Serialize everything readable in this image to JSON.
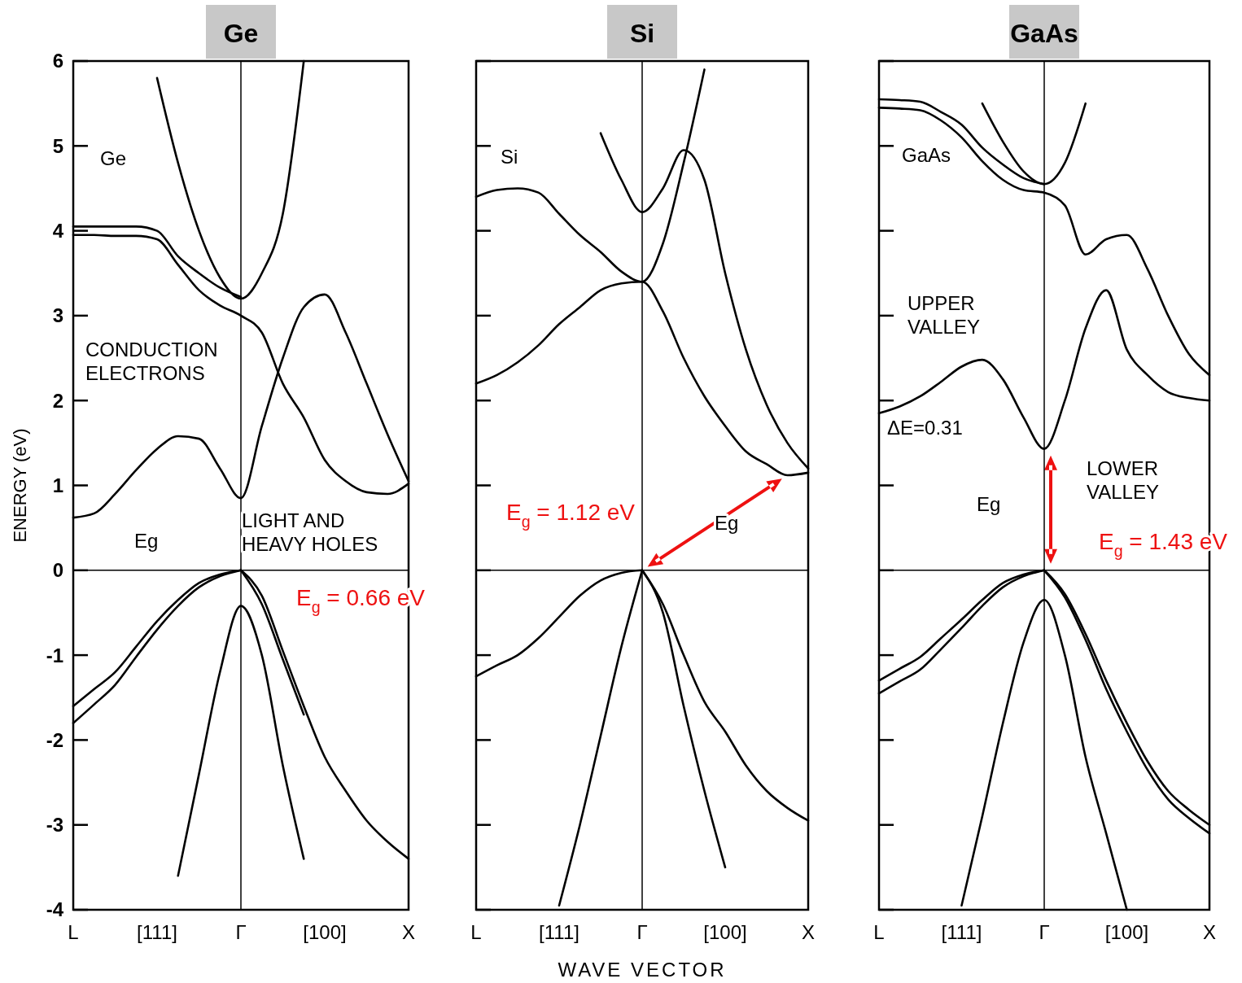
{
  "chart_data": [
    {
      "type": "line",
      "title": "Ge",
      "ylabel": "ENERGY (eV)",
      "categories": [
        "L",
        null,
        null,
        null,
        "[111]",
        null,
        null,
        null,
        "Γ",
        null,
        null,
        null,
        "[100]",
        null,
        null,
        null,
        "X"
      ],
      "ylim": [
        -4,
        6
      ],
      "yticks": [
        -4,
        -3,
        -2,
        -1,
        0,
        1,
        2,
        3,
        4,
        5,
        6
      ],
      "line_style": "solid",
      "ref_lines": [
        {
          "axis": "x",
          "value": "Γ",
          "color": "#000000"
        },
        {
          "axis": "y",
          "value": 0,
          "color": "#000000"
        }
      ],
      "annotations": [
        "Ge",
        "CONDUCTION\nELECTRONS",
        "Eg",
        "LIGHT AND\nHEAVY HOLES",
        "E$_{g}$ = 0.66 eV"
      ],
      "series": [
        {
          "color": "#000000",
          "values": [
            null,
            null,
            null,
            null,
            5.8,
            4.8,
            4.0,
            3.45,
            3.2,
            3.5,
            4.2,
            6,
            null,
            null,
            null,
            null,
            null
          ]
        },
        {
          "color": "#000000",
          "values": [
            4.05,
            4.05,
            4.05,
            4.05,
            4.0,
            3.7,
            3.5,
            3.33,
            3.22,
            null,
            null,
            null,
            null,
            null,
            null,
            null,
            null
          ]
        },
        {
          "color": "#000000",
          "values": [
            3.95,
            3.95,
            3.94,
            3.94,
            3.9,
            3.6,
            3.3,
            3.12,
            3.0,
            2.8,
            2.2,
            1.8,
            1.3,
            1.05,
            0.92,
            0.9,
            1.02
          ]
        },
        {
          "color": "#000000",
          "values": [
            0.62,
            0.67,
            0.9,
            1.18,
            1.43,
            1.58,
            1.55,
            1.2,
            0.85,
            1.7,
            2.5,
            3.1,
            3.25,
            2.8,
            2.2,
            1.6,
            1.05
          ]
        },
        {
          "color": "#000000",
          "values": [
            -1.6,
            -1.4,
            -1.2,
            -0.9,
            -0.6,
            -0.35,
            -0.15,
            -0.05,
            0,
            null,
            null,
            null,
            null,
            null,
            null,
            null,
            null
          ]
        },
        {
          "color": "#000000",
          "values": [
            -1.8,
            -1.58,
            -1.35,
            -1.02,
            -0.7,
            -0.42,
            -0.2,
            -0.07,
            0,
            null,
            null,
            null,
            null,
            null,
            null,
            null,
            null
          ]
        },
        {
          "color": "#000000",
          "values": [
            null,
            null,
            null,
            null,
            null,
            null,
            null,
            null,
            0,
            -0.3,
            -0.95,
            -1.6,
            -2.2,
            -2.6,
            -2.95,
            -3.2,
            -3.4
          ]
        },
        {
          "color": "#000000",
          "values": [
            null,
            null,
            null,
            null,
            null,
            null,
            null,
            null,
            0,
            -0.4,
            -1.05,
            -1.7,
            null,
            null,
            null,
            null,
            null
          ]
        },
        {
          "color": "#000000",
          "values": [
            null,
            null,
            null,
            null,
            null,
            -3.6,
            -2.4,
            -1.2,
            -0.42,
            -1.0,
            -2.3,
            -3.4,
            null,
            null,
            null,
            null,
            null
          ]
        }
      ]
    },
    {
      "type": "line",
      "title": "Si",
      "xlabel": "WAVE VECTOR",
      "categories": [
        "L",
        null,
        null,
        null,
        "[111]",
        null,
        null,
        null,
        "Γ",
        null,
        null,
        null,
        "[100]",
        null,
        null,
        null,
        "X"
      ],
      "ylim": [
        -4,
        6
      ],
      "tick_labels": "x",
      "yticks": [
        -4,
        -3,
        -2,
        -1,
        0,
        1,
        2,
        3,
        4,
        5,
        6
      ],
      "line_style": "solid",
      "ref_lines": [
        {
          "axis": "x",
          "value": "Γ",
          "color": "#000000"
        },
        {
          "axis": "y",
          "value": 0,
          "color": "#000000"
        }
      ],
      "annotations": [
        "Si",
        "Eg",
        "E$_{g}$ = 1.12 eV"
      ],
      "series": [
        {
          "color": "#000000",
          "values": [
            null,
            null,
            null,
            null,
            null,
            null,
            5.15,
            4.6,
            4.22,
            4.5,
            4.95,
            4.6,
            3.5,
            2.6,
            1.95,
            1.5,
            1.2
          ]
        },
        {
          "color": "#000000",
          "values": [
            4.4,
            4.48,
            4.5,
            4.45,
            4.2,
            3.95,
            3.75,
            3.52,
            3.4,
            3.85,
            4.8,
            5.9,
            null,
            null,
            null,
            null,
            null
          ]
        },
        {
          "color": "#000000",
          "values": [
            2.2,
            2.3,
            2.45,
            2.65,
            2.9,
            3.1,
            3.3,
            3.38,
            3.4,
            3.05,
            2.5,
            2.05,
            1.7,
            1.4,
            1.25,
            1.12,
            1.15
          ]
        },
        {
          "color": "#000000",
          "values": [
            -1.25,
            -1.12,
            -1.0,
            -0.8,
            -0.55,
            -0.3,
            -0.12,
            -0.03,
            0,
            null,
            null,
            null,
            null,
            null,
            null,
            null,
            null
          ]
        },
        {
          "color": "#000000",
          "values": [
            null,
            null,
            null,
            null,
            null,
            null,
            null,
            null,
            0,
            -0.4,
            -1.0,
            -1.55,
            -1.9,
            -2.3,
            -2.6,
            -2.8,
            -2.95
          ]
        },
        {
          "color": "#000000",
          "values": [
            null,
            null,
            null,
            null,
            null,
            null,
            null,
            null,
            0,
            -0.5,
            -1.6,
            -2.6,
            -3.5,
            null,
            null,
            null,
            null
          ]
        },
        {
          "color": "#000000",
          "values": [
            null,
            null,
            null,
            null,
            -3.95,
            -3.0,
            -1.95,
            -0.9,
            0,
            null,
            null,
            null,
            null,
            null,
            null,
            null,
            null
          ]
        }
      ]
    },
    {
      "type": "line",
      "title": "GaAs",
      "categories": [
        "L",
        null,
        null,
        null,
        "[111]",
        null,
        null,
        null,
        "Γ",
        null,
        null,
        null,
        "[100]",
        null,
        null,
        null,
        "X"
      ],
      "ylim": [
        -4,
        6
      ],
      "tick_labels": "x",
      "yticks": [
        -4,
        -3,
        -2,
        -1,
        0,
        1,
        2,
        3,
        4,
        5,
        6
      ],
      "line_style": "solid",
      "ref_lines": [
        {
          "axis": "x",
          "value": "Γ",
          "color": "#000000"
        },
        {
          "axis": "y",
          "value": 0,
          "color": "#000000"
        }
      ],
      "annotations": [
        "GaAs",
        "UPPER\nVALLEY",
        "ΔE=0.31",
        "Eg",
        "LOWER\nVALLEY",
        "E$_{g}$ = 1.43 eV"
      ],
      "series": [
        {
          "color": "#000000",
          "values": [
            null,
            null,
            null,
            null,
            null,
            5.5,
            5.05,
            4.7,
            4.55,
            4.8,
            5.5,
            null,
            null,
            null,
            null,
            null,
            null
          ]
        },
        {
          "color": "#000000",
          "values": [
            5.55,
            5.54,
            5.52,
            5.4,
            5.25,
            4.98,
            4.78,
            4.62,
            4.55,
            null,
            null,
            null,
            null,
            null,
            null,
            null,
            null
          ]
        },
        {
          "color": "#000000",
          "values": [
            5.45,
            5.44,
            5.42,
            5.3,
            5.1,
            4.82,
            4.6,
            4.48,
            4.45,
            4.3,
            3.72,
            3.9,
            3.95,
            3.55,
            3.0,
            2.55,
            2.3
          ]
        },
        {
          "color": "#000000",
          "values": [
            1.85,
            1.93,
            2.05,
            2.22,
            2.4,
            2.48,
            2.25,
            1.8,
            1.43,
            2.0,
            2.85,
            3.3,
            2.6,
            2.3,
            2.1,
            2.03,
            2.0
          ]
        },
        {
          "color": "#000000",
          "values": [
            -1.3,
            -1.16,
            -1.02,
            -0.8,
            -0.58,
            -0.35,
            -0.15,
            -0.05,
            0,
            null,
            null,
            null,
            null,
            null,
            null,
            null,
            null
          ]
        },
        {
          "color": "#000000",
          "values": [
            -1.45,
            -1.31,
            -1.17,
            -0.93,
            -0.68,
            -0.42,
            -0.2,
            -0.07,
            0,
            null,
            null,
            null,
            null,
            null,
            null,
            null,
            null
          ]
        },
        {
          "color": "#000000",
          "values": [
            null,
            null,
            null,
            null,
            null,
            null,
            null,
            null,
            0,
            -0.28,
            -0.75,
            -1.3,
            -1.8,
            -2.25,
            -2.6,
            -2.82,
            -3.0
          ]
        },
        {
          "color": "#000000",
          "values": [
            null,
            null,
            null,
            null,
            null,
            null,
            null,
            null,
            0,
            -0.32,
            -0.82,
            -1.4,
            -1.9,
            -2.35,
            -2.7,
            -2.92,
            -3.1
          ]
        },
        {
          "color": "#000000",
          "values": [
            null,
            null,
            null,
            null,
            -3.95,
            -2.9,
            -1.8,
            -0.85,
            -0.35,
            -1.0,
            -2.2,
            -3.1,
            -4,
            null,
            null,
            null,
            null
          ]
        }
      ]
    }
  ]
}
